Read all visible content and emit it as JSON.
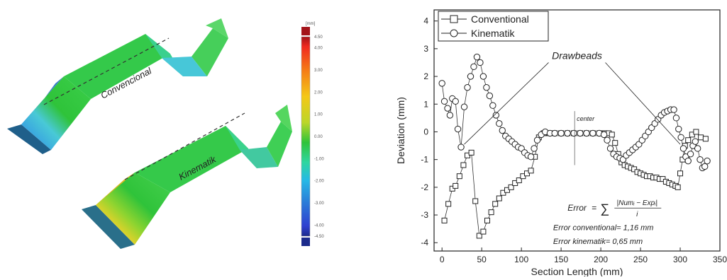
{
  "figure_left": {
    "label_top": "Convencional",
    "label_bottom": "Kinematik",
    "colorbar": {
      "unit": "[mm]",
      "ticks": [
        "4.50",
        "4.00",
        "3.00",
        "2.00",
        "1.00",
        "0.00",
        "-1.00",
        "-2.00",
        "-3.00",
        "-4.00",
        "-4.50"
      ],
      "colors": [
        "#a3141a",
        "#f02a20",
        "#f57d16",
        "#f4c817",
        "#bcd629",
        "#2fc33a",
        "#2fd6a0",
        "#26b9e6",
        "#2b7cd8",
        "#2f3fd0",
        "#1c2b8c"
      ]
    }
  },
  "chart_data": {
    "type": "scatter",
    "xlabel": "Section Length (mm)",
    "ylabel": "Deviation (mm)",
    "xlim": [
      -10,
      350
    ],
    "ylim": [
      -4.3,
      4.4
    ],
    "xticks": [
      0,
      50,
      100,
      150,
      200,
      250,
      300,
      350
    ],
    "yticks": [
      4,
      3,
      2,
      1,
      0,
      -1,
      -2,
      -3,
      -4
    ],
    "legend_position": "top-left",
    "series": [
      {
        "name": "Conventional",
        "marker": "square",
        "x": [
          3,
          8,
          13,
          17,
          22,
          27,
          32,
          37,
          42,
          47,
          52,
          57,
          62,
          67,
          72,
          77,
          82,
          87,
          92,
          97,
          102,
          107,
          112,
          117,
          122,
          128,
          135,
          142,
          150,
          158,
          166,
          174,
          182,
          190,
          198,
          205,
          210,
          214,
          218,
          222,
          226,
          230,
          234,
          238,
          242,
          246,
          250,
          254,
          258,
          262,
          266,
          270,
          274,
          278,
          282,
          286,
          290,
          294,
          297,
          300,
          303,
          306,
          310,
          315,
          320,
          326,
          332
        ],
        "y": [
          -3.2,
          -2.6,
          -2.05,
          -1.95,
          -1.6,
          -1.2,
          -0.85,
          -0.75,
          -2.5,
          -3.75,
          -3.6,
          -3.2,
          -2.9,
          -2.6,
          -2.4,
          -2.2,
          -2.1,
          -2.0,
          -1.85,
          -1.75,
          -1.6,
          -1.5,
          -1.4,
          -0.9,
          -0.2,
          -0.05,
          -0.05,
          -0.05,
          -0.05,
          -0.05,
          -0.05,
          -0.05,
          -0.05,
          -0.05,
          -0.05,
          -0.05,
          -0.05,
          -0.1,
          -0.4,
          -0.8,
          -1.1,
          -1.2,
          -1.25,
          -1.3,
          -1.35,
          -1.45,
          -1.5,
          -1.55,
          -1.6,
          -1.6,
          -1.65,
          -1.65,
          -1.7,
          -1.7,
          -1.8,
          -1.85,
          -1.9,
          -1.95,
          -2.0,
          -1.5,
          -1.0,
          -0.5,
          -0.3,
          -0.1,
          0.0,
          -0.2,
          -0.25
        ]
      },
      {
        "name": "Kinematik",
        "marker": "circle",
        "x": [
          0,
          3,
          7,
          10,
          13,
          17,
          20,
          24,
          28,
          32,
          36,
          40,
          44,
          48,
          52,
          56,
          60,
          64,
          68,
          72,
          76,
          80,
          84,
          88,
          92,
          96,
          100,
          104,
          108,
          112,
          116,
          120,
          125,
          130,
          136,
          142,
          150,
          158,
          166,
          174,
          182,
          190,
          198,
          204,
          208,
          212,
          216,
          220,
          224,
          228,
          232,
          236,
          240,
          244,
          248,
          252,
          256,
          260,
          264,
          268,
          272,
          276,
          280,
          284,
          288,
          292,
          295,
          298,
          301,
          304,
          307,
          310,
          313,
          316,
          319,
          322,
          325,
          328,
          331,
          334
        ],
        "y": [
          1.75,
          1.1,
          0.85,
          0.6,
          1.2,
          1.1,
          0.1,
          -0.55,
          0.9,
          1.6,
          2.0,
          2.35,
          2.7,
          2.5,
          2.0,
          1.6,
          1.3,
          0.95,
          0.6,
          0.3,
          0.05,
          -0.15,
          -0.25,
          -0.35,
          -0.45,
          -0.55,
          -0.6,
          -0.75,
          -0.85,
          -0.9,
          -0.6,
          -0.3,
          -0.1,
          0.0,
          -0.05,
          -0.05,
          -0.05,
          -0.05,
          -0.05,
          -0.05,
          -0.05,
          -0.05,
          -0.05,
          -0.1,
          -0.3,
          -0.6,
          -0.8,
          -0.9,
          -0.95,
          -1.0,
          -0.85,
          -0.75,
          -0.65,
          -0.55,
          -0.45,
          -0.3,
          -0.15,
          0.0,
          0.15,
          0.3,
          0.45,
          0.6,
          0.7,
          0.75,
          0.8,
          0.8,
          0.5,
          0.1,
          -0.2,
          -0.6,
          -0.9,
          -1.05,
          -0.8,
          -0.5,
          -0.35,
          -0.6,
          -1.0,
          -1.3,
          -1.25,
          -1.05
        ]
      }
    ],
    "annotations": {
      "drawbeads": "Drawbeads",
      "center": "center",
      "formula_lhs": "Error",
      "formula_eq": "=",
      "formula_sum": "∑",
      "formula_num": "|Numᵢ − Expᵢ|",
      "formula_den": "i",
      "error_conventional": "Error conventional= 1,16 mm",
      "error_kinematik": "Error kinematik= 0,65 mm"
    }
  }
}
